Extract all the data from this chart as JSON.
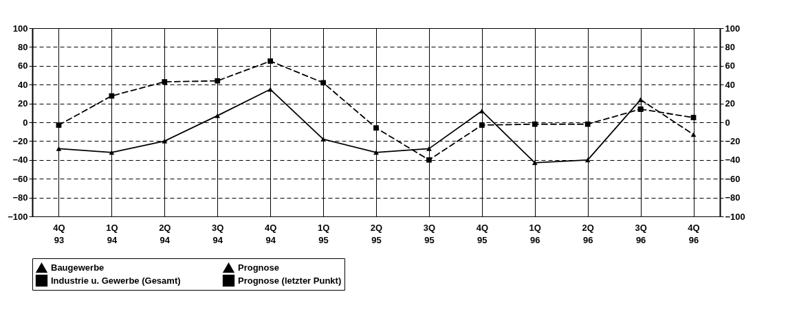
{
  "chart_data": {
    "type": "line",
    "categories": [
      "4Q 93",
      "1Q 94",
      "2Q 94",
      "3Q 94",
      "4Q 94",
      "1Q 95",
      "2Q 95",
      "3Q 95",
      "4Q 95",
      "1Q 96",
      "2Q 96",
      "3Q 96",
      "4Q 96"
    ],
    "series": [
      {
        "name": "Baugewerbe",
        "color": "#000000",
        "marker": "triangle",
        "line_style": "solid",
        "values": [
          -28,
          -32,
          -20,
          7,
          35,
          -18,
          -32,
          -28,
          12,
          -43,
          -40,
          24,
          null
        ]
      },
      {
        "name": "Prognose",
        "color": "#000000",
        "marker": "triangle",
        "line_style": "dashed",
        "values": [
          null,
          null,
          null,
          null,
          null,
          null,
          null,
          null,
          null,
          null,
          null,
          24,
          -13
        ]
      },
      {
        "name": "Industrie u. Gewerbe (Gesamt)",
        "color": "#000000",
        "marker": "square",
        "line_style": "dashed",
        "values": [
          -3,
          28,
          43,
          44,
          65,
          42,
          -6,
          -40,
          -3,
          -2,
          -2,
          14,
          null
        ]
      },
      {
        "name": "Prognose (letzter Punkt)",
        "color": "#000000",
        "marker": "square",
        "line_style": "dashed",
        "values": [
          null,
          null,
          null,
          null,
          null,
          null,
          null,
          null,
          null,
          null,
          null,
          14,
          5
        ]
      }
    ],
    "ylim": [
      -100,
      100
    ],
    "yticks": [
      -100,
      -80,
      -60,
      -40,
      -20,
      0,
      20,
      40,
      60,
      80,
      100
    ],
    "y2lim": [
      -100,
      100
    ],
    "y2ticks": [
      -100,
      -80,
      -60,
      -40,
      -20,
      0,
      20,
      40,
      60,
      80,
      100
    ],
    "grid": true,
    "legend": "bottom"
  }
}
